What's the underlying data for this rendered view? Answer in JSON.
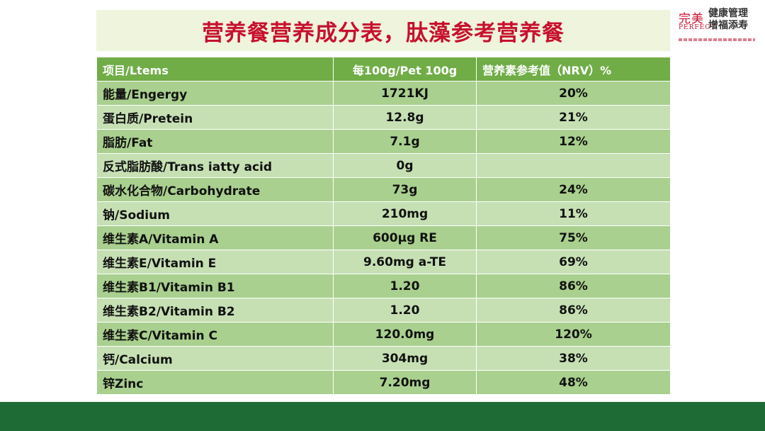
{
  "title": "营养餐营养成分表，肽藻参考营养餐",
  "logo": {
    "brand_cn": "完美",
    "brand_en": "PERFECT",
    "slogan_line1": "健康管理",
    "slogan_line2": "增福添寿"
  },
  "table": {
    "headers": [
      "项目/Ltems",
      "每100g/Pet 100g",
      "营养素参考值（NRV）%"
    ],
    "rows": [
      {
        "item": "能量/Engergy",
        "per100g": "1721KJ",
        "nrv": "20%"
      },
      {
        "item": "蛋白质/Pretein",
        "per100g": "12.8g",
        "nrv": "21%"
      },
      {
        "item": "脂肪/Fat",
        "per100g": "7.1g",
        "nrv": "12%"
      },
      {
        "item": "反式脂肪酸/Trans iatty acid",
        "per100g": "0g",
        "nrv": ""
      },
      {
        "item": "碳水化合物/Carbohydrate",
        "per100g": "73g",
        "nrv": "24%"
      },
      {
        "item": "钠/Sodium",
        "per100g": "210mg",
        "nrv": "11%"
      },
      {
        "item": "维生素A/Vitamin A",
        "per100g": "600μg RE",
        "nrv": "75%"
      },
      {
        "item": "维生素E/Vitamin E",
        "per100g": "9.60mg a-TE",
        "nrv": "69%"
      },
      {
        "item": "维生素B1/Vitamin B1",
        "per100g": "1.20",
        "nrv": "86%"
      },
      {
        "item": "维生素B2/Vitamin B2",
        "per100g": "1.20",
        "nrv": "86%"
      },
      {
        "item": "维生素C/Vitamin C",
        "per100g": "120.0mg",
        "nrv": "120%"
      },
      {
        "item": "钙/Calcium",
        "per100g": "304mg",
        "nrv": "38%"
      },
      {
        "item": "锌Zinc",
        "per100g": "7.20mg",
        "nrv": "48%"
      }
    ]
  },
  "colors": {
    "title": "#c8102e",
    "header_bg": "#70ad47",
    "row_dark": "#a9d08e",
    "row_light": "#c6e0b4",
    "footer": "#1f6b36"
  }
}
